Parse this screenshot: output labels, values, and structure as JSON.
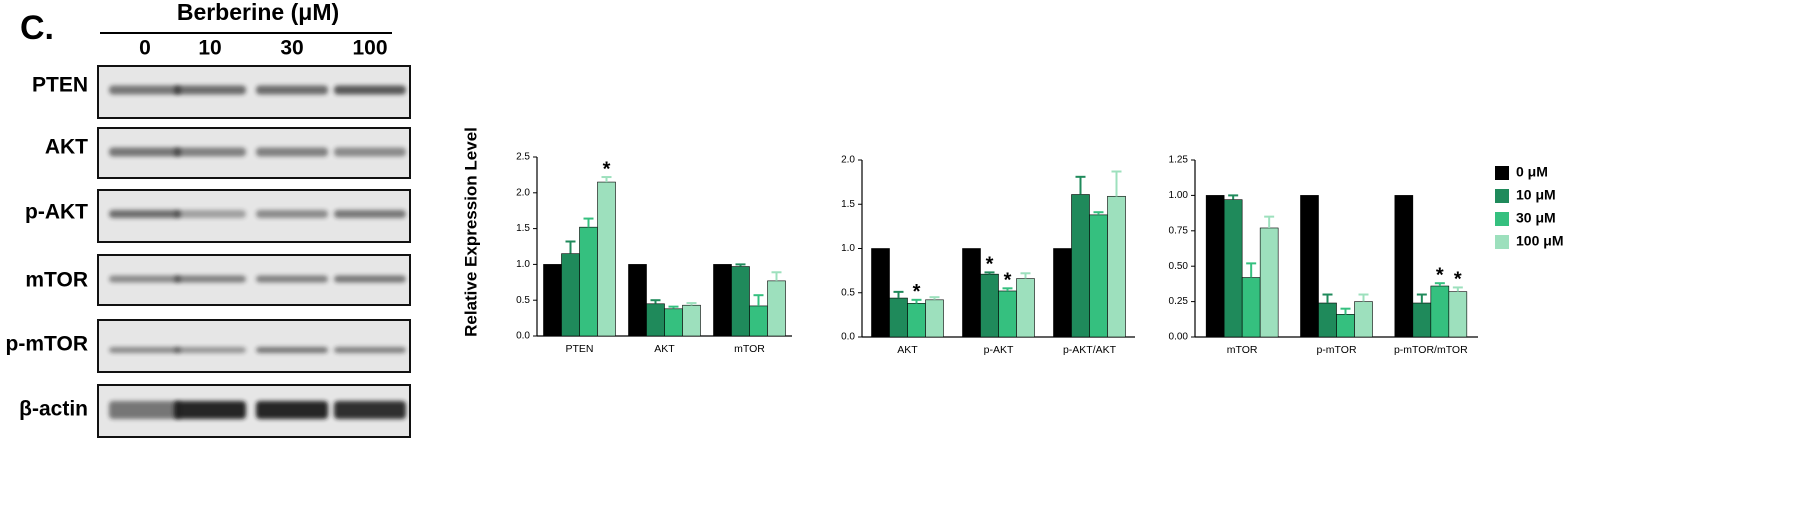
{
  "blot": {
    "panel_label": "C.",
    "treatment": "Berberine (μM)",
    "doses": [
      "0",
      "10",
      "30",
      "100"
    ],
    "rows": [
      "PTEN",
      "AKT",
      "p-AKT",
      "mTOR",
      "p-mTOR",
      "β-actin"
    ]
  },
  "y_label": "Relative Expression Level",
  "chart_data": [
    {
      "type": "bar",
      "categories": [
        "PTEN",
        "AKT",
        "mTOR"
      ],
      "ylim": [
        0,
        2.5
      ],
      "yticks": [
        {
          "value": 0,
          "label": "0.0"
        },
        {
          "value": 0.5,
          "label": "0.5"
        },
        {
          "value": 1,
          "label": "1.0"
        },
        {
          "value": 1.5,
          "label": "1.5"
        },
        {
          "value": 2,
          "label": "2.0"
        },
        {
          "value": 2.5,
          "label": "2.5"
        }
      ],
      "series": [
        {
          "color": "#000000",
          "values": [
            1,
            1,
            1
          ],
          "errors": [
            null,
            null,
            null
          ],
          "significance": [
            null,
            null,
            null
          ]
        },
        {
          "color": "#1f8a5b",
          "values": [
            1.15,
            0.45,
            0.97
          ],
          "errors": [
            0.17,
            0.05,
            0.03
          ],
          "significance": [
            null,
            null,
            null
          ]
        },
        {
          "color": "#35c07f",
          "values": [
            1.52,
            0.38,
            0.42
          ],
          "errors": [
            0.12,
            0.03,
            0.15
          ],
          "significance": [
            null,
            null,
            null
          ]
        },
        {
          "color": "#9de0bd",
          "values": [
            2.15,
            0.43,
            0.77
          ],
          "errors": [
            0.07,
            0.03,
            0.12
          ],
          "significance": [
            "*",
            null,
            null
          ]
        }
      ]
    },
    {
      "type": "bar",
      "categories": [
        "AKT",
        "p-AKT",
        "p-AKT/AKT"
      ],
      "ylim": [
        0,
        2
      ],
      "yticks": [
        {
          "value": 0,
          "label": "0.0"
        },
        {
          "value": 0.5,
          "label": "0.5"
        },
        {
          "value": 1,
          "label": "1.0"
        },
        {
          "value": 1.5,
          "label": "1.5"
        },
        {
          "value": 2,
          "label": "2.0"
        }
      ],
      "series": [
        {
          "color": "#000000",
          "values": [
            1,
            1,
            1
          ],
          "errors": [
            null,
            null,
            null
          ],
          "significance": [
            null,
            null,
            null
          ]
        },
        {
          "color": "#1f8a5b",
          "values": [
            0.44,
            0.71,
            1.61
          ],
          "errors": [
            0.07,
            0.02,
            0.2
          ],
          "significance": [
            null,
            "*",
            null
          ]
        },
        {
          "color": "#35c07f",
          "values": [
            0.38,
            0.52,
            1.38
          ],
          "errors": [
            0.04,
            0.03,
            0.03
          ],
          "significance": [
            "*",
            "*",
            null
          ]
        },
        {
          "color": "#9de0bd",
          "values": [
            0.42,
            0.66,
            1.59
          ],
          "errors": [
            0.03,
            0.06,
            0.28
          ],
          "significance": [
            null,
            null,
            null
          ]
        }
      ]
    },
    {
      "type": "bar",
      "categories": [
        "mTOR",
        "p-mTOR",
        "p-mTOR/mTOR"
      ],
      "ylim": [
        0,
        1.25
      ],
      "yticks": [
        {
          "value": 0,
          "label": "0.00"
        },
        {
          "value": 0.25,
          "label": "0.25"
        },
        {
          "value": 0.5,
          "label": "0.50"
        },
        {
          "value": 0.75,
          "label": "0.75"
        },
        {
          "value": 1,
          "label": "1.00"
        },
        {
          "value": 1.25,
          "label": "1.25"
        }
      ],
      "series": [
        {
          "name": "0 μM",
          "color": "#000000",
          "values": [
            1,
            1,
            1
          ],
          "errors": [
            null,
            null,
            null
          ],
          "significance": [
            null,
            null,
            null
          ]
        },
        {
          "name": "10 μM",
          "color": "#1f8a5b",
          "values": [
            0.97,
            0.24,
            0.24
          ],
          "errors": [
            0.03,
            0.06,
            0.06
          ],
          "significance": [
            null,
            null,
            null
          ]
        },
        {
          "name": "30 μM",
          "color": "#35c07f",
          "values": [
            0.42,
            0.16,
            0.36
          ],
          "errors": [
            0.1,
            0.04,
            0.02
          ],
          "significance": [
            null,
            null,
            "*"
          ]
        },
        {
          "name": "100 μM",
          "color": "#9de0bd",
          "values": [
            0.77,
            0.25,
            0.32
          ],
          "errors": [
            0.08,
            0.05,
            0.03
          ],
          "significance": [
            null,
            null,
            "*"
          ]
        }
      ]
    }
  ]
}
